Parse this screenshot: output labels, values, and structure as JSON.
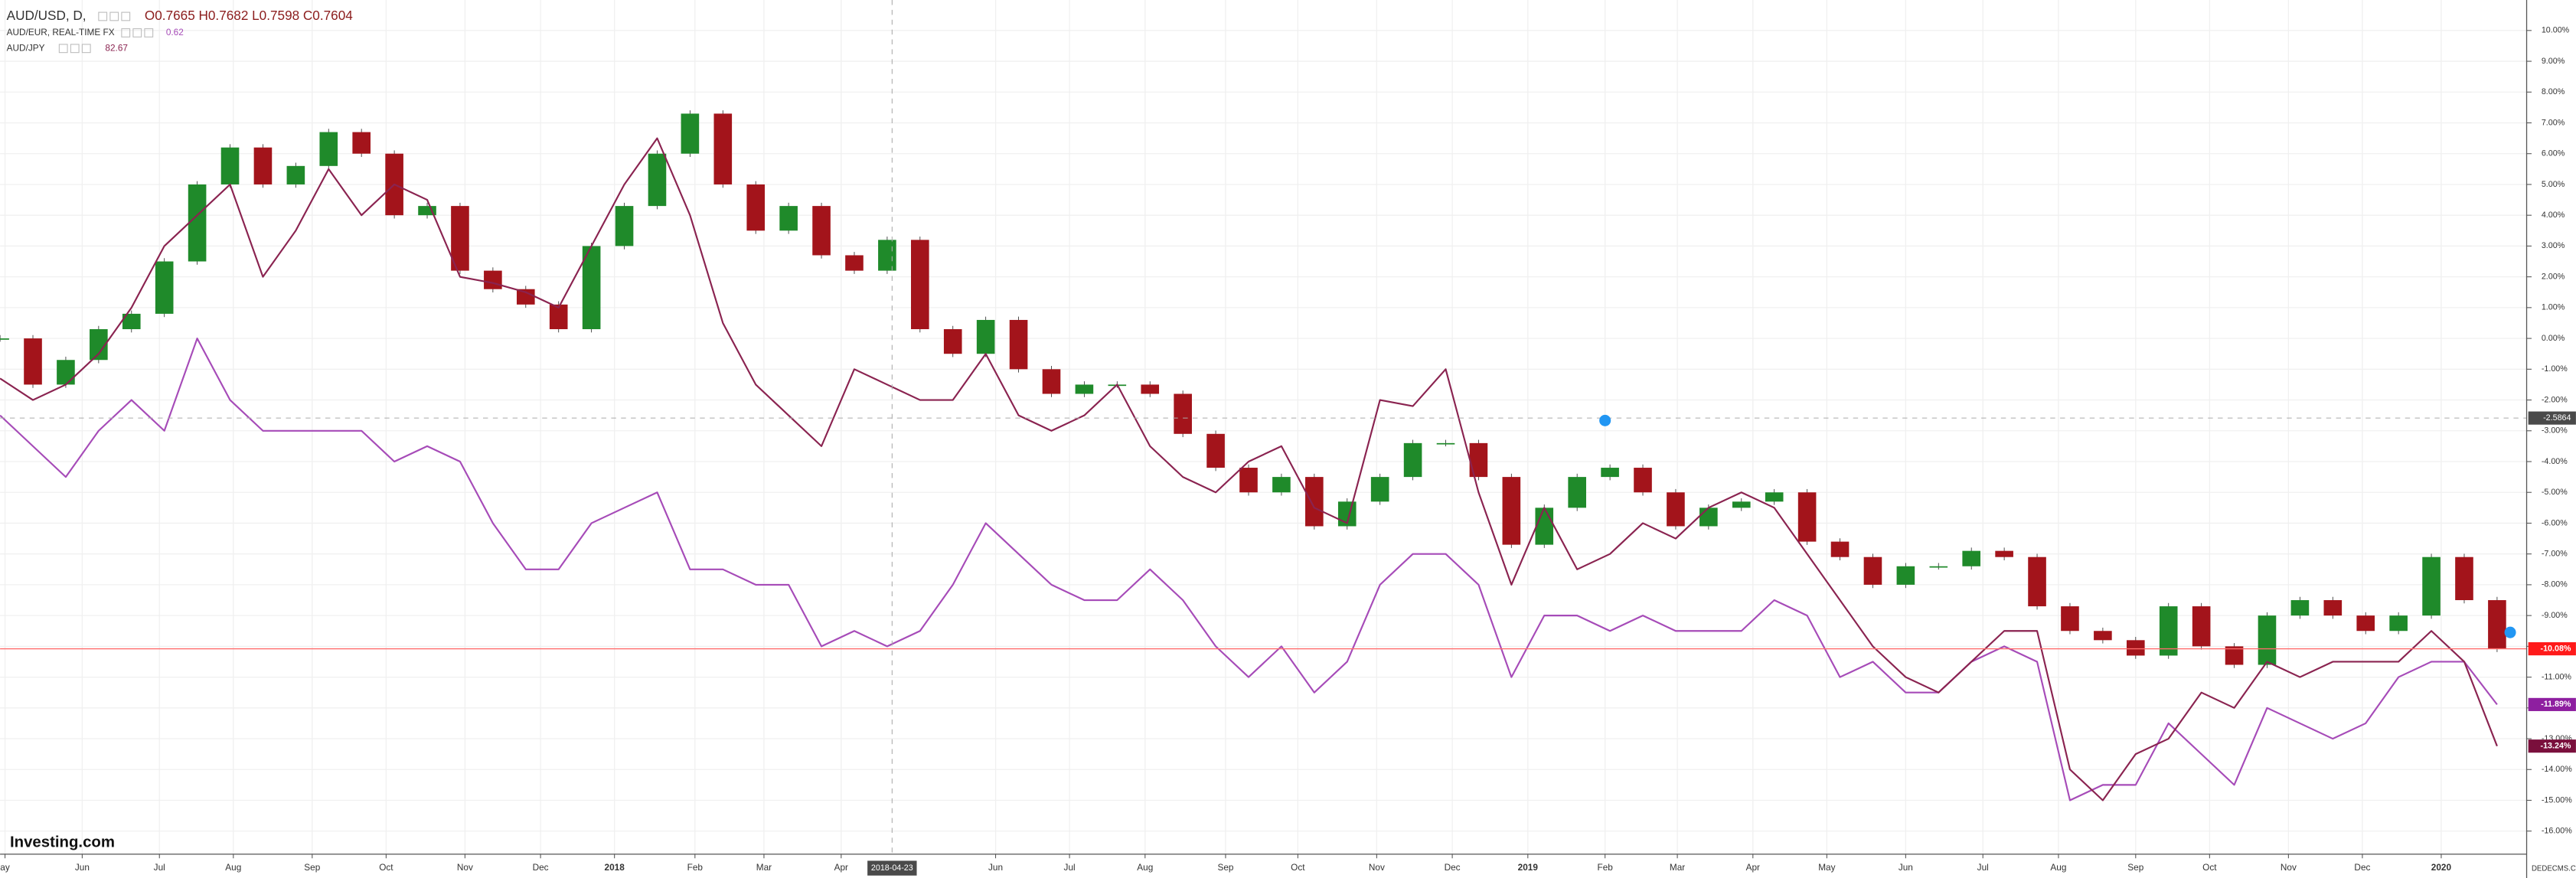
{
  "chart_data": {
    "type": "line",
    "series": [
      {
        "name": "AUD/USD, D,",
        "quote": "O0.7665 H0.7682 L0.7598 C0.7604",
        "style": "candles",
        "color": "#8b1c1c",
        "up_color": "#1f8a2a",
        "down_color": "#a3141b",
        "end_color": "#ff1a1a",
        "end_label": "-10.08%",
        "values": [
          0,
          -1.5,
          -0.7,
          0.3,
          0.8,
          2.5,
          5,
          6.2,
          5,
          5.6,
          6.7,
          6,
          4,
          4.3,
          2.2,
          1.6,
          1.1,
          0.3,
          3,
          4.3,
          6,
          7.3,
          5,
          3.5,
          4.3,
          2.7,
          2.2,
          3.2,
          0.3,
          -0.5,
          0.6,
          -1,
          -1.8,
          -1.5,
          -1.5,
          -1.8,
          -3.1,
          -4.2,
          -5,
          -4.5,
          -6.1,
          -5.3,
          -4.5,
          -3.4,
          -3.4,
          -4.5,
          -6.7,
          -5.5,
          -4.5,
          -4.2,
          -5,
          -6.1,
          -5.5,
          -5.3,
          -5,
          -6.6,
          -7.1,
          -8,
          -7.4,
          -7.4,
          -6.9,
          -7.1,
          -8.7,
          -9.5,
          -9.8,
          -10.3,
          -8.7,
          -10,
          -10.6,
          -9,
          -8.5,
          -9,
          -9.5,
          -9,
          -7.1,
          -8.5,
          -10.08
        ]
      },
      {
        "name": "AUD/EUR, REAL-TIME FX",
        "quote": "0.62",
        "style": "line",
        "color": "#a64bb8",
        "end_color": "#8e1fa0",
        "end_label": "-11.89%",
        "values": [
          -2.5,
          -3.5,
          -4.5,
          -3,
          -2,
          -3,
          0,
          -2,
          -3,
          -3,
          -3,
          -3,
          -4,
          -3.5,
          -4,
          -6,
          -7.5,
          -7.5,
          -6,
          -5.5,
          -5,
          -7.5,
          -7.5,
          -8,
          -8,
          -10,
          -9.5,
          -10,
          -9.5,
          -8,
          -6,
          -7,
          -8,
          -8.5,
          -8.5,
          -7.5,
          -8.5,
          -10,
          -11,
          -10,
          -11.5,
          -10.5,
          -8,
          -7,
          -7,
          -8,
          -11,
          -9,
          -9,
          -9.5,
          -9,
          -9.5,
          -9.5,
          -9.5,
          -8.5,
          -9,
          -11,
          -10.5,
          -11.5,
          -11.5,
          -10.5,
          -10,
          -10.5,
          -15,
          -14.5,
          -14.5,
          -12.5,
          -13.5,
          -14.5,
          -12,
          -12.5,
          -13,
          -12.5,
          -11,
          -10.5,
          -10.5,
          -11.89
        ]
      },
      {
        "name": "AUD/JPY",
        "quote": "82.67",
        "style": "line",
        "color": "#8a2350",
        "end_color": "#7a0f3c",
        "end_label": "-13.24%",
        "values": [
          -1.3,
          -2,
          -1.5,
          -0.5,
          1,
          3,
          4,
          5,
          2,
          3.5,
          5.5,
          4,
          5,
          4.5,
          2,
          1.8,
          1.5,
          1,
          3,
          5,
          6.5,
          4,
          0.5,
          -1.5,
          -2.5,
          -3.5,
          -1,
          -1.5,
          -2,
          -2,
          -0.5,
          -2.5,
          -3,
          -2.5,
          -1.5,
          -3.5,
          -4.5,
          -5,
          -4,
          -3.5,
          -5.5,
          -6,
          -2,
          -2.2,
          -1,
          -5,
          -8,
          -5.5,
          -7.5,
          -7,
          -6,
          -6.5,
          -5.5,
          -5,
          -5.5,
          -7,
          -8.5,
          -10,
          -11,
          -11.5,
          -10.5,
          -9.5,
          -9.5,
          -14,
          -15,
          -13.5,
          -13,
          -11.5,
          -12,
          -10.5,
          -11,
          -10.5,
          -10.5,
          -10.5,
          -9.5,
          -10.5,
          -13.24
        ]
      }
    ],
    "xlim": [
      0,
      76.9
    ],
    "xticks": [
      {
        "value": 0.15,
        "label": "ay"
      },
      {
        "value": 2.5,
        "label": "Jun"
      },
      {
        "value": 4.85,
        "label": "Jul"
      },
      {
        "value": 7.1,
        "label": "Aug"
      },
      {
        "value": 9.5,
        "label": "Sep"
      },
      {
        "value": 11.75,
        "label": "Oct"
      },
      {
        "value": 14.15,
        "label": "Nov"
      },
      {
        "value": 16.45,
        "label": "Dec"
      },
      {
        "value": 18.7,
        "label": "2018"
      },
      {
        "value": 21.15,
        "label": "Feb"
      },
      {
        "value": 23.25,
        "label": "Mar"
      },
      {
        "value": 25.6,
        "label": "Apr"
      },
      {
        "value": 30.3,
        "label": "Jun"
      },
      {
        "value": 32.55,
        "label": "Jul"
      },
      {
        "value": 34.85,
        "label": "Aug"
      },
      {
        "value": 37.3,
        "label": "Sep"
      },
      {
        "value": 39.5,
        "label": "Oct"
      },
      {
        "value": 41.9,
        "label": "Nov"
      },
      {
        "value": 44.2,
        "label": "Dec"
      },
      {
        "value": 46.5,
        "label": "2019"
      },
      {
        "value": 48.85,
        "label": "Feb"
      },
      {
        "value": 51.05,
        "label": "Mar"
      },
      {
        "value": 53.35,
        "label": "Apr"
      },
      {
        "value": 55.6,
        "label": "May"
      },
      {
        "value": 58,
        "label": "Jun"
      },
      {
        "value": 60.35,
        "label": "Jul"
      },
      {
        "value": 62.65,
        "label": "Aug"
      },
      {
        "value": 65,
        "label": "Sep"
      },
      {
        "value": 67.25,
        "label": "Oct"
      },
      {
        "value": 69.65,
        "label": "Nov"
      },
      {
        "value": 71.9,
        "label": "Dec"
      },
      {
        "value": 74.3,
        "label": "2020"
      }
    ],
    "ylim": [
      -16.75,
      10.99
    ],
    "yticks": [
      {
        "value": 10,
        "label": "10.00%"
      },
      {
        "value": 9,
        "label": "9.00%"
      },
      {
        "value": 8,
        "label": "8.00%"
      },
      {
        "value": 7,
        "label": "7.00%"
      },
      {
        "value": 6,
        "label": "6.00%"
      },
      {
        "value": 5,
        "label": "5.00%"
      },
      {
        "value": 4,
        "label": "4.00%"
      },
      {
        "value": 3,
        "label": "3.00%"
      },
      {
        "value": 2,
        "label": "2.00%"
      },
      {
        "value": 1,
        "label": "1.00%"
      },
      {
        "value": 0,
        "label": "0.00%"
      },
      {
        "value": -1,
        "label": "-1.00%"
      },
      {
        "value": -2,
        "label": "-2.00%"
      },
      {
        "value": -3,
        "label": "-3.00%"
      },
      {
        "value": -4,
        "label": "-4.00%"
      },
      {
        "value": -5,
        "label": "-5.00%"
      },
      {
        "value": -6,
        "label": "-6.00%"
      },
      {
        "value": -7,
        "label": "-7.00%"
      },
      {
        "value": -8,
        "label": "-8.00%"
      },
      {
        "value": -9,
        "label": "-9.00%"
      },
      {
        "value": -10,
        "label": "-10.00%"
      },
      {
        "value": -11,
        "label": "-11.00%"
      },
      {
        "value": -12,
        "label": "-12.00%"
      },
      {
        "value": -13,
        "label": "-13.00%"
      },
      {
        "value": -14,
        "label": "-14.00%"
      },
      {
        "value": -15,
        "label": "-15.00%"
      },
      {
        "value": -16,
        "label": "-16.00%"
      }
    ],
    "grid": true,
    "crosshair": {
      "x": {
        "value": 27.15,
        "label": "2018-04-23"
      },
      "y": -2.5864
    },
    "logo": "Investing.com",
    "watermark": "DEDECMS.COM"
  }
}
